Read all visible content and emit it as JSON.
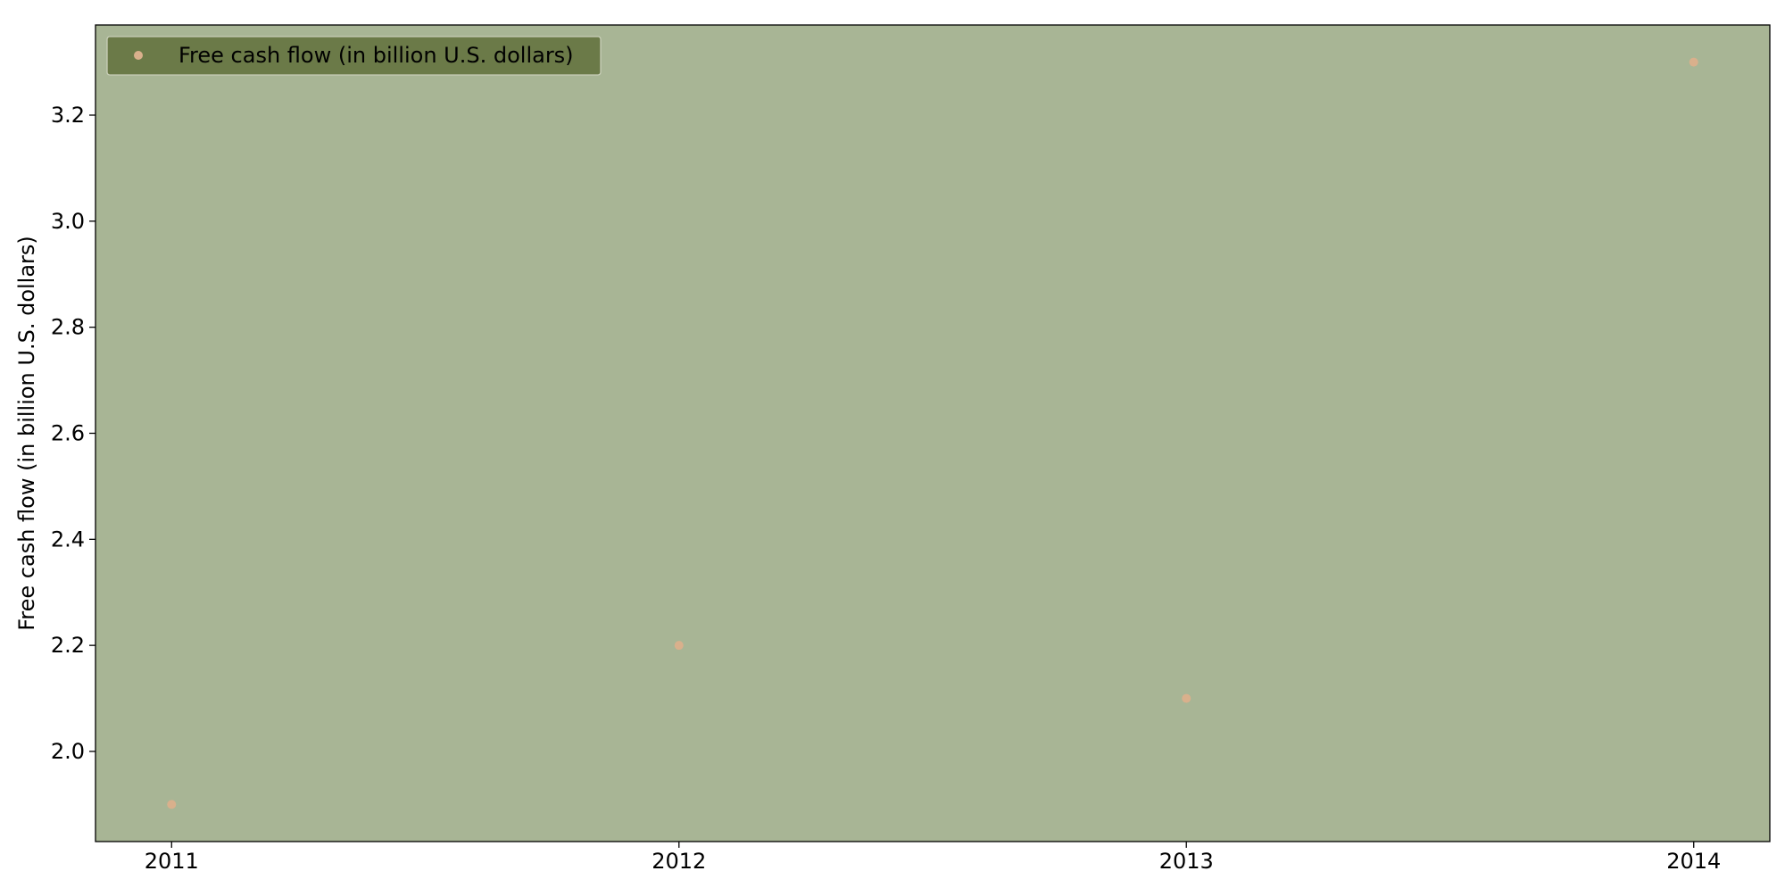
{
  "chart_data": {
    "type": "scatter",
    "title": "",
    "xlabel": "",
    "ylabel": "Free cash flow (in billion U.S. dollars)",
    "x": [
      2011,
      2012,
      2013,
      2014
    ],
    "x_tick_labels": [
      "2011",
      "2012",
      "2013",
      "2014"
    ],
    "y_ticks": [
      2.0,
      2.2,
      2.4,
      2.6,
      2.8,
      3.0,
      3.2
    ],
    "y_tick_labels": [
      "2.0",
      "2.2",
      "2.4",
      "2.6",
      "2.8",
      "3.0",
      "3.2"
    ],
    "xlim": [
      2010.85,
      2014.15
    ],
    "ylim": [
      1.83,
      3.37
    ],
    "grid": false,
    "legend_position": "top-left",
    "series": [
      {
        "name": "Free cash flow (in billion U.S. dollars)",
        "values": [
          1.9,
          2.2,
          2.1,
          3.3
        ],
        "color": "#d9b08c"
      }
    ],
    "colors": {
      "plot_background": "#a8b595",
      "legend_background": "#6b7a48",
      "axis": "#000000"
    }
  }
}
